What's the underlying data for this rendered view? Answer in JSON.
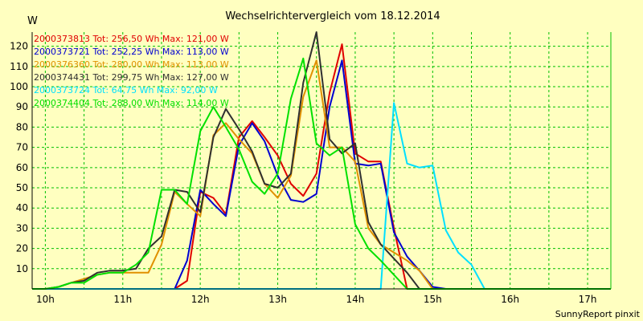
{
  "chart_data": {
    "type": "line",
    "title": "Wechselrichtervergleich vom 18.12.2014",
    "ylabel": "W",
    "xlabel": "",
    "ylim": [
      0,
      127
    ],
    "yticks": [
      10,
      20,
      30,
      40,
      50,
      60,
      70,
      80,
      90,
      100,
      110,
      120
    ],
    "xticks": [
      "10h",
      "11h",
      "12h",
      "13h",
      "14h",
      "15h",
      "16h",
      "17h"
    ],
    "x_start_hour": 9.83,
    "x_end_hour": 17.3,
    "grid": true,
    "legend_position": "top-left",
    "footer": "SunnyReport pinxit",
    "x": [
      9.83,
      10.0,
      10.17,
      10.33,
      10.5,
      10.67,
      10.83,
      11.0,
      11.17,
      11.33,
      11.5,
      11.67,
      11.83,
      12.0,
      12.17,
      12.33,
      12.5,
      12.67,
      12.83,
      13.0,
      13.17,
      13.33,
      13.5,
      13.67,
      13.83,
      14.0,
      14.17,
      14.33,
      14.5,
      14.67,
      14.83,
      15.0,
      15.17,
      15.33,
      15.5,
      15.67,
      15.83,
      16.0,
      16.17,
      16.33,
      16.5,
      16.67,
      16.83,
      17.0,
      17.17,
      17.3
    ],
    "series": [
      {
        "name": "2000373813 Tot: 256,50 Wh Max: 121,00 W",
        "color": "#e00000",
        "values": [
          0,
          0,
          0,
          0,
          0,
          0,
          0,
          0,
          0,
          0,
          0,
          0,
          4,
          48,
          45,
          37,
          75,
          83,
          75,
          66,
          52,
          46,
          57,
          97,
          121,
          67,
          63,
          63,
          30,
          0,
          0,
          0,
          0,
          0,
          0,
          0,
          0,
          0,
          0,
          0,
          0,
          0,
          0,
          0,
          0,
          0
        ]
      },
      {
        "name": "2000373721 Tot: 252,25 Wh Max: 113,00 W",
        "color": "#0000d0",
        "values": [
          0,
          0,
          0,
          0,
          0,
          0,
          0,
          0,
          0,
          0,
          0,
          0,
          14,
          49,
          42,
          36,
          71,
          82,
          73,
          56,
          44,
          43,
          47,
          90,
          113,
          62,
          61,
          62,
          28,
          16,
          9,
          1,
          0,
          0,
          0,
          0,
          0,
          0,
          0,
          0,
          0,
          0,
          0,
          0,
          0,
          0
        ]
      },
      {
        "name": "2000376360 Tot: 280,00 Wh Max: 113,00 W",
        "color": "#e09000",
        "values": [
          0,
          0,
          1,
          3,
          5,
          7,
          8,
          8,
          8,
          8,
          22,
          48,
          42,
          36,
          76,
          82,
          74,
          67,
          52,
          45,
          56,
          95,
          113,
          70,
          70,
          63,
          30,
          22,
          18,
          14,
          9,
          0,
          0,
          0,
          0,
          0,
          0,
          0,
          0,
          0,
          0,
          0,
          0,
          0,
          0,
          0
        ]
      },
      {
        "name": "2000374431 Tot: 299,75 Wh Max: 127,00 W",
        "color": "#303030",
        "values": [
          0,
          0,
          1,
          3,
          4,
          8,
          9,
          9,
          10,
          20,
          26,
          49,
          48,
          38,
          75,
          89,
          79,
          68,
          52,
          50,
          57,
          102,
          127,
          74,
          67,
          72,
          33,
          22,
          15,
          8,
          0,
          0,
          0,
          0,
          0,
          0,
          0,
          0,
          0,
          0,
          0,
          0,
          0,
          0,
          0,
          0
        ]
      },
      {
        "name": "2000373724 Tot: 64,75 Wh Max: 92,00 W",
        "color": "#00e0ff",
        "values": [
          0,
          0,
          0,
          0,
          0,
          0,
          0,
          0,
          0,
          0,
          0,
          0,
          0,
          0,
          0,
          0,
          0,
          0,
          0,
          0,
          0,
          0,
          0,
          0,
          0,
          0,
          0,
          0,
          92,
          62,
          60,
          61,
          29,
          18,
          12,
          0,
          0,
          0,
          0,
          0,
          0,
          0,
          0,
          0,
          0,
          0
        ]
      },
      {
        "name": "2000374404 Tot: 288,00 Wh Max: 114,00 W",
        "color": "#00e000",
        "values": [
          0,
          0,
          1,
          3,
          3,
          7,
          8,
          8,
          12,
          18,
          49,
          49,
          42,
          78,
          90,
          80,
          69,
          53,
          47,
          57,
          94,
          114,
          72,
          66,
          70,
          32,
          20,
          14,
          7,
          0,
          0,
          0,
          0,
          0,
          0,
          0,
          0,
          0,
          0,
          0,
          0,
          0,
          0,
          0,
          0,
          0
        ]
      }
    ]
  }
}
